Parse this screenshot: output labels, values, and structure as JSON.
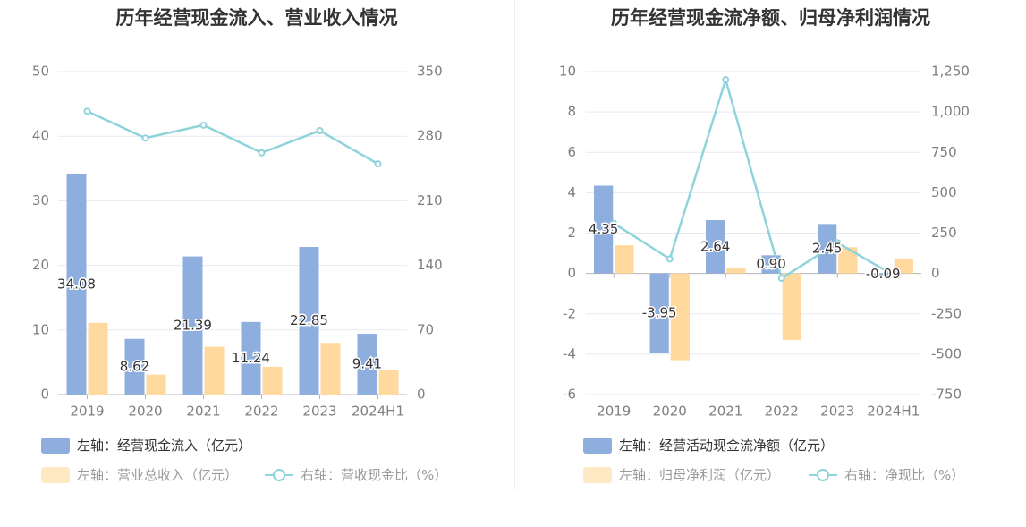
{
  "chart_data": [
    {
      "type": "bar",
      "title": "历年经营现金流入、营业收入情况",
      "categories": [
        "2019",
        "2020",
        "2021",
        "2022",
        "2023",
        "2024H1"
      ],
      "left_axis": {
        "min": 0,
        "max": 50,
        "ticks": [
          "0",
          "10",
          "20",
          "30",
          "40",
          "50"
        ]
      },
      "right_axis": {
        "min": 0,
        "max": 350,
        "ticks": [
          "0",
          "70",
          "140",
          "210",
          "280",
          "350"
        ]
      },
      "grid": true,
      "legend_position": "bottom",
      "series": [
        {
          "name": "左轴：经营现金流入（亿元）",
          "axis": "left",
          "kind": "bar",
          "color": "#8eaedd",
          "values": [
            34.08,
            8.62,
            21.39,
            11.24,
            22.85,
            9.41
          ],
          "labels": [
            "34.08",
            "8.62",
            "21.39",
            "11.24",
            "22.85",
            "9.41"
          ]
        },
        {
          "name": "左轴：营业总收入（亿元）",
          "axis": "left",
          "kind": "bar",
          "color": "#ffd99e",
          "values": [
            11.1,
            3.1,
            7.4,
            4.3,
            8.0,
            3.8
          ]
        },
        {
          "name": "右轴：营收现金比（%）",
          "axis": "right",
          "kind": "line",
          "color": "#8fd3db",
          "values": [
            307,
            278,
            292,
            262,
            286,
            250
          ]
        }
      ]
    },
    {
      "type": "bar",
      "title": "历年经营现金流净额、归母净利润情况",
      "categories": [
        "2019",
        "2020",
        "2021",
        "2022",
        "2023",
        "2024H1"
      ],
      "left_axis": {
        "min": -6,
        "max": 10,
        "ticks": [
          "-6",
          "-4",
          "-2",
          "0",
          "2",
          "4",
          "6",
          "8",
          "10"
        ]
      },
      "right_axis": {
        "min": -750,
        "max": 1250,
        "ticks": [
          "-750",
          "-500",
          "-250",
          "0",
          "250",
          "500",
          "750",
          "1,000",
          "1,250"
        ]
      },
      "grid": true,
      "legend_position": "bottom",
      "series": [
        {
          "name": "左轴：经营活动现金流净额（亿元）",
          "axis": "left",
          "kind": "bar",
          "color": "#8eaedd",
          "values": [
            4.35,
            -3.95,
            2.64,
            0.9,
            2.45,
            -0.09
          ],
          "labels": [
            "4.35",
            "-3.95",
            "2.64",
            "0.90",
            "2.45",
            "-0.09"
          ]
        },
        {
          "name": "左轴：归母净利润（亿元）",
          "axis": "left",
          "kind": "bar",
          "color": "#ffd99e",
          "values": [
            1.4,
            -4.3,
            0.25,
            -3.3,
            1.3,
            0.7
          ]
        },
        {
          "name": "右轴：净现比（%）",
          "axis": "right",
          "kind": "line",
          "color": "#8fd3db",
          "values": [
            310,
            90,
            1200,
            -30,
            190,
            -10
          ]
        }
      ]
    }
  ]
}
